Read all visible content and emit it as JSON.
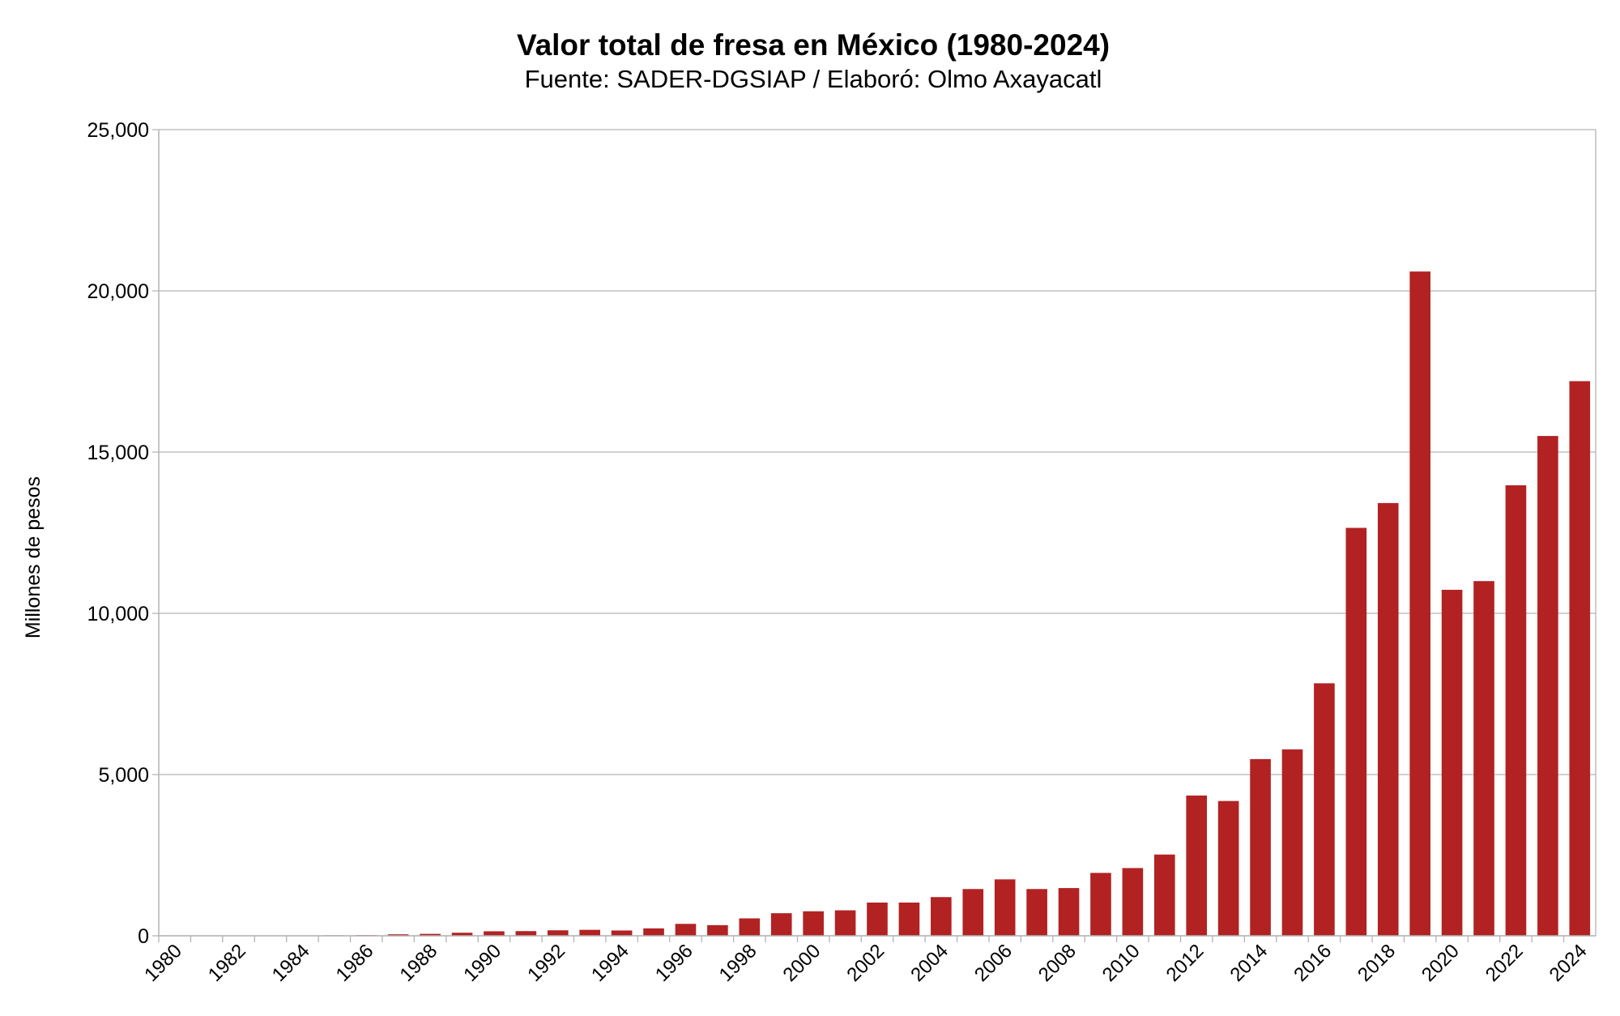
{
  "chart_data": {
    "type": "bar",
    "title": "Valor total de fresa en México (1980-2024)",
    "subtitle": "Fuente: SADER-DGSIAP / Elaboró: Olmo Axayacatl",
    "xlabel": "",
    "ylabel": "Millones de pesos",
    "ylim": [
      0,
      25000
    ],
    "yticks": [
      "0",
      "5,000",
      "10,000",
      "15,000",
      "20,000",
      "25,000"
    ],
    "ytick_values": [
      0,
      5000,
      10000,
      15000,
      20000,
      25000
    ],
    "grid": true,
    "legend": "none",
    "bar_color": "#b22222",
    "categories": [
      "1980",
      "1981",
      "1982",
      "1983",
      "1984",
      "1985",
      "1986",
      "1987",
      "1988",
      "1989",
      "1990",
      "1991",
      "1992",
      "1993",
      "1994",
      "1995",
      "1996",
      "1997",
      "1998",
      "1999",
      "2000",
      "2001",
      "2002",
      "2003",
      "2004",
      "2005",
      "2006",
      "2007",
      "2008",
      "2009",
      "2010",
      "2011",
      "2012",
      "2013",
      "2014",
      "2015",
      "2016",
      "2017",
      "2018",
      "2019",
      "2020",
      "2021",
      "2022",
      "2023",
      "2024"
    ],
    "values": [
      2,
      3,
      4,
      6,
      10,
      15,
      20,
      45,
      60,
      95,
      140,
      145,
      170,
      185,
      165,
      230,
      370,
      330,
      540,
      700,
      760,
      790,
      1030,
      1030,
      1200,
      1450,
      1750,
      1450,
      1480,
      1950,
      2100,
      2520,
      4350,
      4180,
      5480,
      5780,
      7830,
      12650,
      13420,
      20600,
      10730,
      11000,
      13970,
      15500,
      17200
    ]
  }
}
